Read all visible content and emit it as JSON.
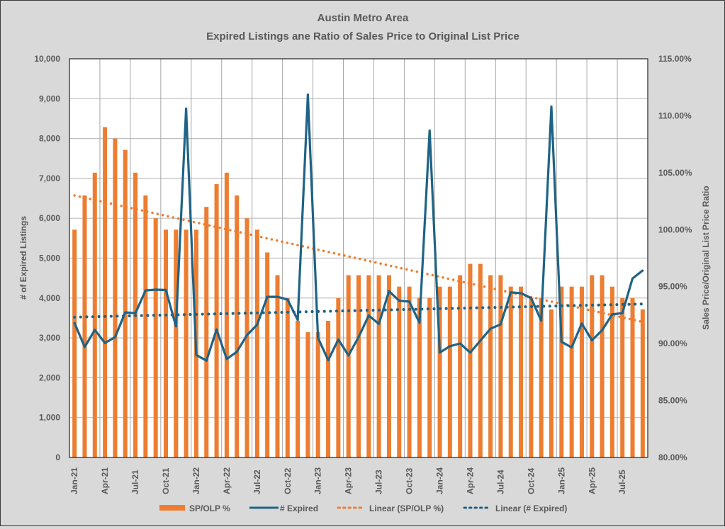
{
  "chart_data": {
    "type": "bar",
    "title": "Austin Metro Area",
    "subtitle": "Expired Listings ane Ratio of Sales Price to Original List Price",
    "ylabel_left": "# of Expired Listings",
    "ylabel_right": "Sales Price/Original List Price Ratio",
    "ylim_left": [
      0,
      10000
    ],
    "ylim_right": [
      80,
      115
    ],
    "left_ticks": [
      "0",
      "1,000",
      "2,000",
      "3,000",
      "4,000",
      "5,000",
      "6,000",
      "7,000",
      "8,000",
      "9,000",
      "10,000"
    ],
    "right_ticks": [
      "80.00%",
      "85.00%",
      "90.00%",
      "95.00%",
      "100.00%",
      "105.00%",
      "110.00%",
      "115.00%"
    ],
    "grid": true,
    "legend_position": "bottom",
    "categories": [
      "Jan-21",
      "Feb-21",
      "Mar-21",
      "Apr-21",
      "May-21",
      "Jun-21",
      "Jul-21",
      "Aug-21",
      "Sep-21",
      "Oct-21",
      "Nov-21",
      "Dec-21",
      "Jan-22",
      "Feb-22",
      "Mar-22",
      "Apr-22",
      "May-22",
      "Jun-22",
      "Jul-22",
      "Aug-22",
      "Sep-22",
      "Oct-22",
      "Nov-22",
      "Dec-22",
      "Jan-23",
      "Feb-23",
      "Mar-23",
      "Apr-23",
      "May-23",
      "Jun-23",
      "Jul-23",
      "Aug-23",
      "Sep-23",
      "Oct-23",
      "Nov-23",
      "Dec-23",
      "Jan-24",
      "Feb-24",
      "Mar-24",
      "Apr-24",
      "May-24",
      "Jun-24",
      "Jul-24",
      "Aug-24",
      "Sep-24",
      "Oct-24",
      "Nov-24",
      "Dec-24",
      "Jan-25",
      "Feb-25",
      "Mar-25",
      "Apr-25",
      "May-25",
      "Jun-25",
      "Jul-25",
      "Aug-25",
      "Sep-25"
    ],
    "x_tick_labels": [
      "Jan-21",
      "Apr-21",
      "Jul-21",
      "Oct-21",
      "Jan-22",
      "Apr-22",
      "Jul-22",
      "Oct-22",
      "Jan-23",
      "Apr-23",
      "Jul-23",
      "Oct-23",
      "Jan-24",
      "Apr-24",
      "Jul-24",
      "Oct-24",
      "Jan-25",
      "Apr-25",
      "Jul-25"
    ],
    "series": [
      {
        "name": "SP/OLP %",
        "type": "bar",
        "axis": "right",
        "color": "#ed7d31",
        "values": [
          100,
          103,
          105,
          109,
          108,
          107,
          105,
          103,
          101,
          100,
          100,
          100,
          100,
          102,
          104,
          105,
          103,
          101,
          100,
          98,
          96,
          94,
          92,
          91,
          91,
          92,
          94,
          96,
          96,
          96,
          96,
          96,
          95,
          95,
          94,
          94,
          95,
          95,
          96,
          97,
          97,
          96,
          96,
          95,
          95,
          94,
          94,
          93,
          95,
          95,
          95,
          96,
          96,
          95,
          94,
          94,
          93
        ]
      },
      {
        "name": "# Expired",
        "type": "line",
        "axis": "left",
        "color": "#1f6386",
        "values": [
          3370,
          2770,
          3200,
          2870,
          3020,
          3640,
          3620,
          4190,
          4210,
          4200,
          3290,
          8750,
          2570,
          2430,
          3210,
          2470,
          2650,
          3070,
          3330,
          4030,
          4030,
          3960,
          3450,
          9100,
          3000,
          2440,
          2960,
          2560,
          3020,
          3560,
          3350,
          4170,
          3930,
          3910,
          3380,
          8200,
          2630,
          2790,
          2860,
          2630,
          2930,
          3230,
          3340,
          4140,
          4120,
          4000,
          3430,
          8800,
          2900,
          2760,
          3360,
          2940,
          3190,
          3590,
          3620,
          4490,
          4690
        ]
      },
      {
        "name": "Linear (SP/OLP %)",
        "type": "trendline",
        "axis": "right",
        "color": "#ed7d31",
        "start": 103.0,
        "end": 91.9
      },
      {
        "name": "Linear (# Expired)",
        "type": "trendline",
        "axis": "left",
        "color": "#1f6386",
        "start": 3520,
        "end": 3850
      }
    ]
  }
}
